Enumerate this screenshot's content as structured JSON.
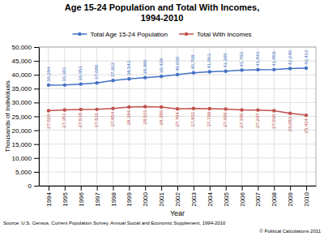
{
  "chart_data": {
    "type": "line",
    "title": "Age 15-24 Population and Total With Incomes,\n1994-2010",
    "x_label": "Year",
    "y_label": "Thousands of Individuals",
    "x": [
      1994,
      1995,
      1996,
      1997,
      1998,
      1999,
      2000,
      2001,
      2002,
      2003,
      2004,
      2005,
      2006,
      2007,
      2008,
      2009,
      2010
    ],
    "series": [
      {
        "name": "Total Age 15-24 Population",
        "color": "#4472C4",
        "values": [
          36294,
          36301,
          36653,
          37080,
          37922,
          38543,
          38986,
          39429,
          40066,
          40708,
          41063,
          41305,
          41702,
          41843,
          41859,
          42240,
          42412
        ],
        "value_labels": [
          "36,294",
          "36,301",
          "36,653",
          "37,080",
          "37,922",
          "38,543",
          "38,986",
          "39,429",
          "40,066",
          "40,708",
          "41,063",
          "41,305",
          "41,702",
          "41,843",
          "41,859",
          "42,240",
          "42,412"
        ]
      },
      {
        "name": "Total With Incomes",
        "color": "#C0504D",
        "values": [
          27026,
          27351,
          27518,
          27531,
          27854,
          28384,
          28511,
          28350,
          27704,
          27831,
          27799,
          27655,
          27360,
          27297,
          27036,
          26083,
          25414
        ],
        "value_labels": [
          "27,026",
          "27,351",
          "27,518",
          "27,531",
          "27,854",
          "28,384",
          "28,511",
          "28,350",
          "27,704",
          "27,831",
          "27,799",
          "27,655",
          "27,360",
          "27,297",
          "27,036",
          "26,083",
          "25,414"
        ]
      }
    ],
    "xlim": [
      1993.4,
      2010.6
    ],
    "xticks": [
      1994,
      1995,
      1996,
      1997,
      1998,
      1999,
      2000,
      2001,
      2002,
      2003,
      2004,
      2005,
      2006,
      2007,
      2008,
      2009,
      2010
    ],
    "ylim": [
      0,
      50000
    ],
    "yticks": [
      0,
      {
        "value": 5000,
        "label": "5,000"
      },
      {
        "value": 10000,
        "label": "10,000"
      },
      {
        "value": 15000,
        "label": "15,000"
      },
      {
        "value": 20000,
        "label": "20,000"
      },
      {
        "value": 25000,
        "label": "25,000"
      },
      {
        "value": 30000,
        "label": "30,000"
      },
      {
        "value": 35000,
        "label": "35,000"
      },
      {
        "value": 40000,
        "label": "40,000"
      },
      {
        "value": 45000,
        "label": "45,000"
      },
      {
        "value": 50000,
        "label": "50,000"
      }
    ],
    "grid": true,
    "legend": "top",
    "marker": "circle",
    "data_labels": true,
    "annotations": [
      "Source: U.S. Census, Current Population Survey, Annual Social and Economic Supplement, 1994-2010",
      "© Political Calculations 2011"
    ]
  }
}
